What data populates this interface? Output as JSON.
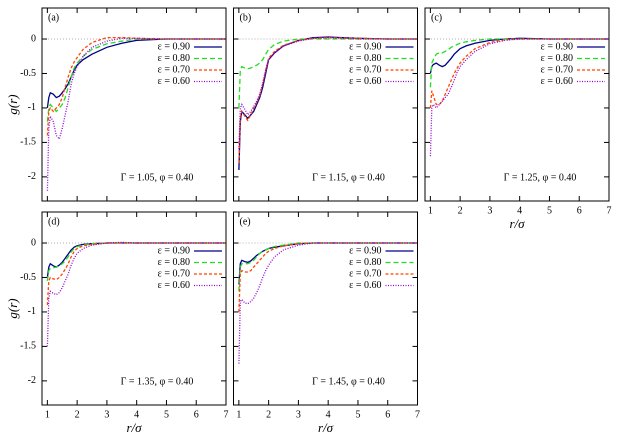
{
  "chart_data": [
    {
      "type": "line",
      "label": "(a)",
      "annotation": "Γ = 1.05, φ = 0.40",
      "ylabel": "g(r)",
      "x": [
        1.0,
        1.05,
        1.1,
        1.2,
        1.3,
        1.4,
        1.5,
        1.6,
        1.7,
        1.8,
        1.9,
        2.0,
        2.2,
        2.5,
        3,
        3.5,
        4,
        5,
        6,
        7
      ],
      "xlim": [
        0.82,
        7
      ],
      "ylim": [
        -2.35,
        0.45
      ],
      "xticks": [
        1,
        2,
        3,
        4,
        5,
        6,
        7
      ],
      "yticks": [
        -2,
        -1.5,
        -1,
        -0.5,
        0
      ],
      "show_xtick_labels": false,
      "show_ytick_labels": true,
      "hline": 0,
      "series": [
        {
          "name": "ε = 0.90",
          "color": "#00008b",
          "dash": "solid",
          "values": [
            -1.0,
            -0.85,
            -0.78,
            -0.8,
            -0.85,
            -0.83,
            -0.78,
            -0.72,
            -0.65,
            -0.55,
            -0.45,
            -0.38,
            -0.3,
            -0.22,
            -0.12,
            -0.06,
            -0.02,
            0,
            0,
            0
          ]
        },
        {
          "name": "ε = 0.80",
          "color": "#22dd22",
          "dash": "dashed",
          "values": [
            -1.2,
            -1.0,
            -0.95,
            -1.0,
            -1.05,
            -1.0,
            -0.95,
            -0.85,
            -0.7,
            -0.55,
            -0.42,
            -0.35,
            -0.25,
            -0.15,
            -0.07,
            -0.03,
            0,
            0,
            0,
            0
          ]
        },
        {
          "name": "ε = 0.70",
          "color": "#ff4500",
          "dash": "short",
          "values": [
            -1.4,
            -1.05,
            -1.0,
            -1.05,
            -1.0,
            -0.95,
            -0.85,
            -0.7,
            -0.55,
            -0.42,
            -0.33,
            -0.27,
            -0.15,
            -0.05,
            0.02,
            0.02,
            0.01,
            0,
            0,
            0
          ]
        },
        {
          "name": "ε = 0.60",
          "color": "#9400d3",
          "dash": "dotted",
          "values": [
            -2.2,
            -1.3,
            -1.12,
            -1.2,
            -1.4,
            -1.45,
            -1.3,
            -1.1,
            -0.9,
            -0.65,
            -0.5,
            -0.4,
            -0.25,
            -0.12,
            -0.03,
            0.01,
            0.01,
            0,
            0,
            0
          ]
        }
      ]
    },
    {
      "type": "line",
      "label": "(b)",
      "annotation": "Γ = 1.15, φ = 0.40",
      "x": [
        1.0,
        1.05,
        1.1,
        1.2,
        1.3,
        1.4,
        1.5,
        1.6,
        1.7,
        1.8,
        1.9,
        2.0,
        2.2,
        2.5,
        3,
        3.5,
        4,
        5,
        6,
        7
      ],
      "xlim": [
        0.82,
        7
      ],
      "ylim": [
        -2.35,
        0.45
      ],
      "xticks": [
        1,
        2,
        3,
        4,
        5,
        6,
        7
      ],
      "yticks": [
        -2,
        -1.5,
        -1,
        -0.5,
        0
      ],
      "show_xtick_labels": false,
      "show_ytick_labels": false,
      "hline": 0,
      "series": [
        {
          "name": "ε = 0.90",
          "color": "#00008b",
          "dash": "solid",
          "values": [
            -1.9,
            -1.2,
            -1.05,
            -1.1,
            -1.15,
            -1.1,
            -1.05,
            -0.95,
            -0.85,
            -0.7,
            -0.5,
            -0.3,
            -0.2,
            -0.1,
            -0.02,
            0.02,
            0.03,
            0.01,
            0,
            0
          ]
        },
        {
          "name": "ε = 0.80",
          "color": "#22dd22",
          "dash": "dashed",
          "values": [
            -1.0,
            -0.45,
            -0.4,
            -0.42,
            -0.43,
            -0.42,
            -0.4,
            -0.38,
            -0.35,
            -0.3,
            -0.22,
            -0.15,
            -0.08,
            -0.03,
            0,
            0,
            0,
            0,
            0,
            0
          ]
        },
        {
          "name": "ε = 0.70",
          "color": "#ff4500",
          "dash": "short",
          "values": [
            -1.8,
            -1.15,
            -1.05,
            -1.12,
            -1.18,
            -1.1,
            -1.0,
            -0.92,
            -0.82,
            -0.65,
            -0.45,
            -0.28,
            -0.18,
            -0.09,
            -0.02,
            0.01,
            0.02,
            0.01,
            0,
            0
          ]
        },
        {
          "name": "ε = 0.60",
          "color": "#9400d3",
          "dash": "dotted",
          "values": [
            -1.6,
            -1.0,
            -0.95,
            -1.02,
            -1.1,
            -1.05,
            -0.98,
            -0.9,
            -0.8,
            -0.65,
            -0.45,
            -0.3,
            -0.2,
            -0.1,
            -0.03,
            0.01,
            0.02,
            0,
            0,
            0
          ]
        }
      ]
    },
    {
      "type": "line",
      "label": "(c)",
      "annotation": "Γ = 1.25, φ = 0.40",
      "xlabel": "r/σ",
      "x": [
        1.0,
        1.05,
        1.1,
        1.2,
        1.3,
        1.4,
        1.5,
        1.6,
        1.7,
        1.8,
        1.9,
        2.0,
        2.2,
        2.5,
        3,
        3.5,
        4,
        5,
        6,
        7
      ],
      "xlim": [
        0.82,
        7
      ],
      "ylim": [
        -2.35,
        0.45
      ],
      "xticks": [
        1,
        2,
        3,
        4,
        5,
        6,
        7
      ],
      "yticks": [
        -2,
        -1.5,
        -1,
        -0.5,
        0
      ],
      "show_xtick_labels": true,
      "show_ytick_labels": false,
      "hline": 0,
      "series": [
        {
          "name": "ε = 0.90",
          "color": "#00008b",
          "dash": "solid",
          "values": [
            -0.5,
            -0.4,
            -0.37,
            -0.35,
            -0.38,
            -0.4,
            -0.38,
            -0.33,
            -0.28,
            -0.22,
            -0.18,
            -0.14,
            -0.1,
            -0.06,
            -0.02,
            0,
            0.01,
            0,
            0,
            0
          ]
        },
        {
          "name": "ε = 0.80",
          "color": "#22dd22",
          "dash": "dashed",
          "values": [
            -0.7,
            -0.35,
            -0.3,
            -0.22,
            -0.2,
            -0.2,
            -0.18,
            -0.15,
            -0.12,
            -0.1,
            -0.08,
            -0.06,
            -0.04,
            -0.02,
            0,
            0,
            0,
            0,
            0,
            0
          ]
        },
        {
          "name": "ε = 0.70",
          "color": "#ff4500",
          "dash": "short",
          "values": [
            -1.0,
            -0.75,
            -0.82,
            -0.95,
            -0.95,
            -0.9,
            -0.8,
            -0.7,
            -0.6,
            -0.5,
            -0.42,
            -0.35,
            -0.25,
            -0.14,
            -0.05,
            -0.01,
            0,
            0,
            0,
            0
          ]
        },
        {
          "name": "ε = 0.60",
          "color": "#9400d3",
          "dash": "dotted",
          "values": [
            -1.7,
            -1.0,
            -0.95,
            -1.0,
            -0.95,
            -0.9,
            -0.85,
            -0.8,
            -0.7,
            -0.6,
            -0.48,
            -0.4,
            -0.3,
            -0.18,
            -0.07,
            -0.02,
            0,
            0,
            0,
            0
          ]
        }
      ]
    },
    {
      "type": "line",
      "label": "(d)",
      "annotation": "Γ = 1.35, φ = 0.40",
      "ylabel": "g(r)",
      "xlabel": "r/σ",
      "x": [
        1.0,
        1.05,
        1.1,
        1.2,
        1.3,
        1.4,
        1.5,
        1.6,
        1.7,
        1.8,
        1.9,
        2.0,
        2.2,
        2.5,
        3,
        3.5,
        4,
        5,
        6,
        7
      ],
      "xlim": [
        0.82,
        7
      ],
      "ylim": [
        -2.35,
        0.45
      ],
      "xticks": [
        1,
        2,
        3,
        4,
        5,
        6,
        7
      ],
      "yticks": [
        -2,
        -1.5,
        -1,
        -0.5,
        0
      ],
      "show_xtick_labels": true,
      "show_ytick_labels": true,
      "hline": 0,
      "series": [
        {
          "name": "ε = 0.90",
          "color": "#00008b",
          "dash": "solid",
          "values": [
            -0.5,
            -0.35,
            -0.3,
            -0.33,
            -0.35,
            -0.32,
            -0.28,
            -0.22,
            -0.16,
            -0.1,
            -0.06,
            -0.04,
            -0.02,
            -0.01,
            0,
            0,
            0,
            0,
            0,
            0
          ]
        },
        {
          "name": "ε = 0.80",
          "color": "#22dd22",
          "dash": "dashed",
          "values": [
            -0.55,
            -0.4,
            -0.37,
            -0.36,
            -0.35,
            -0.33,
            -0.3,
            -0.26,
            -0.2,
            -0.13,
            -0.08,
            -0.05,
            -0.03,
            -0.01,
            0,
            0,
            0,
            0,
            0,
            0
          ]
        },
        {
          "name": "ε = 0.70",
          "color": "#ff4500",
          "dash": "short",
          "values": [
            -0.9,
            -0.55,
            -0.5,
            -0.52,
            -0.53,
            -0.5,
            -0.45,
            -0.38,
            -0.3,
            -0.2,
            -0.12,
            -0.08,
            -0.04,
            -0.02,
            0,
            0,
            0,
            0,
            0,
            0
          ]
        },
        {
          "name": "ε = 0.60",
          "color": "#9400d3",
          "dash": "dotted",
          "values": [
            -1.5,
            -0.8,
            -0.7,
            -0.73,
            -0.75,
            -0.72,
            -0.65,
            -0.55,
            -0.45,
            -0.32,
            -0.22,
            -0.15,
            -0.08,
            -0.03,
            0,
            0.01,
            0,
            0,
            0,
            0
          ]
        }
      ]
    },
    {
      "type": "line",
      "label": "(e)",
      "annotation": "Γ = 1.45, φ = 0.40",
      "xlabel": "r/σ",
      "x": [
        1.0,
        1.05,
        1.1,
        1.2,
        1.3,
        1.4,
        1.5,
        1.6,
        1.7,
        1.8,
        1.9,
        2.0,
        2.2,
        2.5,
        3,
        3.5,
        4,
        5,
        6,
        7
      ],
      "xlim": [
        0.82,
        7
      ],
      "ylim": [
        -2.35,
        0.45
      ],
      "xticks": [
        1,
        2,
        3,
        4,
        5,
        6,
        7
      ],
      "yticks": [
        -2,
        -1.5,
        -1,
        -0.5,
        0
      ],
      "show_xtick_labels": true,
      "show_ytick_labels": false,
      "hline": 0,
      "series": [
        {
          "name": "ε = 0.90",
          "color": "#00008b",
          "dash": "solid",
          "values": [
            -0.6,
            -0.3,
            -0.25,
            -0.27,
            -0.28,
            -0.26,
            -0.22,
            -0.18,
            -0.15,
            -0.12,
            -0.1,
            -0.08,
            -0.06,
            -0.04,
            -0.01,
            0,
            0,
            0,
            0,
            0
          ]
        },
        {
          "name": "ε = 0.80",
          "color": "#22dd22",
          "dash": "dashed",
          "values": [
            -0.7,
            -0.35,
            -0.3,
            -0.3,
            -0.3,
            -0.28,
            -0.25,
            -0.2,
            -0.15,
            -0.12,
            -0.1,
            -0.08,
            -0.05,
            -0.03,
            0,
            0,
            0,
            0,
            0,
            0
          ]
        },
        {
          "name": "ε = 0.70",
          "color": "#ff4500",
          "dash": "short",
          "values": [
            -1.0,
            -0.45,
            -0.4,
            -0.42,
            -0.42,
            -0.4,
            -0.35,
            -0.3,
            -0.25,
            -0.2,
            -0.15,
            -0.12,
            -0.08,
            -0.04,
            -0.01,
            0,
            0,
            0,
            0,
            0
          ]
        },
        {
          "name": "ε = 0.60",
          "color": "#9400d3",
          "dash": "dotted",
          "values": [
            -1.75,
            -0.85,
            -0.82,
            -0.87,
            -0.88,
            -0.85,
            -0.8,
            -0.72,
            -0.62,
            -0.5,
            -0.4,
            -0.32,
            -0.2,
            -0.1,
            -0.03,
            0,
            0,
            0,
            0,
            0
          ]
        }
      ]
    }
  ]
}
